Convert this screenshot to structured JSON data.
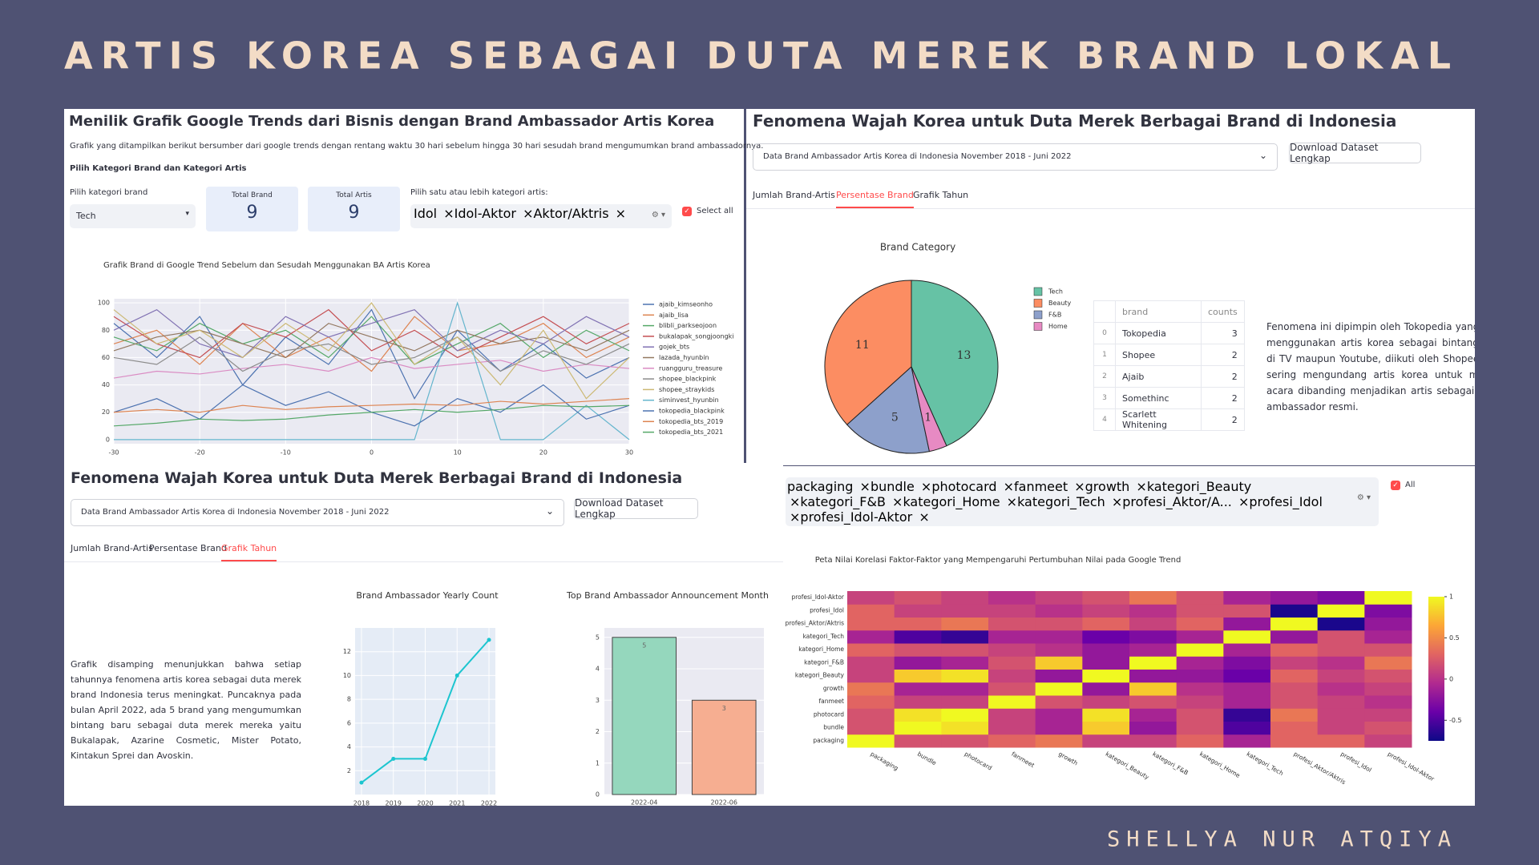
{
  "title": "ARTIS KOREA SEBAGAI DUTA MEREK BRAND LOKAL",
  "author": "SHELLYA NUR ATQIYA",
  "trends": {
    "heading": "Menilik Grafik Google Trends dari Bisnis dengan Brand Ambassador Artis Korea",
    "description": "Grafik yang ditampilkan berikut bersumber dari google trends dengan rentang waktu 30 hari sebelum hingga 30 hari sesudah brand mengumumkan brand ambassadornya.",
    "section_label": "Pilih Kategori Brand dan Kategori Artis",
    "brand_select_label": "Pilih kategori brand",
    "brand_select_value": "Tech",
    "metrics": [
      {
        "label": "Total Brand",
        "value": 9
      },
      {
        "label": "Total Artis",
        "value": 9
      }
    ],
    "artist_select_label": "Pilih satu atau lebih kategori artis:",
    "artist_tags": [
      "Idol",
      "Idol-Aktor",
      "Aktor/Aktris"
    ],
    "select_all": "Select all"
  },
  "categories_panel": {
    "heading": "Fenomena Wajah Korea untuk Duta Merek Berbagai Brand di Indonesia",
    "dataset": "Data Brand Ambassador Artis Korea di Indonesia November 2018 - Juni 2022",
    "download": "Download Dataset Lengkap",
    "tabs": [
      "Jumlah Brand-Artis",
      "Persentase Brand",
      "Grafik Tahun"
    ],
    "active_tab": 1,
    "table": {
      "columns": [
        "brand",
        "counts"
      ],
      "rows": [
        [
          0,
          "Tokopedia",
          3
        ],
        [
          1,
          "Shopee",
          2
        ],
        [
          2,
          "Ajaib",
          2
        ],
        [
          3,
          "Somethinc",
          2
        ],
        [
          4,
          "Scarlett Whitening",
          2
        ]
      ]
    },
    "text": "Fenomena ini dipimpin oleh Tokopedia yang telah menggunakan artis korea sebagai bintang iklan di TV maupun Youtube, diikuti oleh Shopee yang sering mengundang artis korea untuk mengisi acara dibanding menjadikan artis sebagai brand ambassador resmi."
  },
  "yearly_panel": {
    "heading": "Fenomena Wajah Korea untuk Duta Merek Berbagai Brand di Indonesia",
    "dataset": "Data Brand Ambassador Artis Korea di Indonesia November 2018 - Juni 2022",
    "download": "Download Dataset Lengkap",
    "tabs": [
      "Jumlah Brand-Artis",
      "Persentase Brand",
      "Grafik Tahun"
    ],
    "active_tab": 2,
    "text": "Grafik disamping menunjukkan bahwa setiap tahunnya fenomena artis korea sebagai duta merek brand Indonesia terus meningkat. Puncaknya pada bulan April 2022, ada 5 brand yang mengumumkan bintang baru sebagai duta merek mereka yaitu Bukalapak, Azarine Cosmetic, Mister Potato, Kintakun Sprei dan Avoskin."
  },
  "correlation_panel": {
    "tags": [
      "packaging",
      "bundle",
      "photocard",
      "fanmeet",
      "growth",
      "kategori_Beauty",
      "kategori_F&B",
      "kategori_Home",
      "kategori_Tech",
      "profesi_Aktor/A...",
      "profesi_Idol",
      "profesi_Idol-Aktor"
    ],
    "select_all": "All"
  },
  "chart_data": [
    {
      "type": "line",
      "title": "Grafik Brand di Google Trend Sebelum dan Sesudah Menggunakan BA Artis Korea",
      "x": [
        -30,
        -25,
        -20,
        -15,
        -10,
        -5,
        0,
        5,
        10,
        15,
        20,
        25,
        30
      ],
      "xlim": [
        -30,
        30
      ],
      "xticks": [
        -30,
        -20,
        -10,
        0,
        10,
        20,
        30
      ],
      "ylim": [
        -3,
        103
      ],
      "yticks": [
        0,
        20,
        40,
        60,
        80,
        100
      ],
      "grid": true,
      "series": [
        {
          "name": "ajaib_kimseonho",
          "color": "#4c72b0",
          "values": [
            85,
            60,
            90,
            40,
            75,
            55,
            95,
            30,
            80,
            50,
            70,
            45,
            60
          ]
        },
        {
          "name": "ajaib_lisa",
          "color": "#dd8452",
          "values": [
            70,
            80,
            55,
            85,
            60,
            75,
            50,
            90,
            65,
            70,
            85,
            60,
            75
          ]
        },
        {
          "name": "blibli_parkseojoon",
          "color": "#55a868",
          "values": [
            75,
            65,
            85,
            70,
            80,
            60,
            90,
            55,
            70,
            85,
            60,
            80,
            65
          ]
        },
        {
          "name": "bukalapak_songjoongki",
          "color": "#c44e52",
          "values": [
            90,
            70,
            60,
            85,
            75,
            95,
            65,
            80,
            60,
            75,
            90,
            70,
            85
          ]
        },
        {
          "name": "gojek_bts",
          "color": "#8172b3",
          "values": [
            80,
            95,
            70,
            60,
            90,
            75,
            85,
            95,
            65,
            80,
            70,
            90,
            75
          ]
        },
        {
          "name": "lazada_hyunbin",
          "color": "#937860",
          "values": [
            65,
            75,
            80,
            70,
            60,
            85,
            75,
            65,
            80,
            70,
            75,
            65,
            80
          ]
        },
        {
          "name": "ruangguru_treasure",
          "color": "#da8bc3",
          "values": [
            45,
            50,
            48,
            52,
            55,
            50,
            60,
            52,
            55,
            58,
            50,
            55,
            52
          ]
        },
        {
          "name": "shopee_blackpink",
          "color": "#8c8c8c",
          "values": [
            60,
            55,
            75,
            50,
            65,
            70,
            55,
            60,
            75,
            50,
            65,
            55,
            70
          ]
        },
        {
          "name": "shopee_straykids",
          "color": "#ccb974",
          "values": [
            95,
            70,
            80,
            60,
            85,
            65,
            100,
            55,
            75,
            40,
            80,
            30,
            60
          ]
        },
        {
          "name": "siminvest_hyunbin",
          "color": "#64b5cd",
          "values": [
            0,
            0,
            0,
            0,
            0,
            0,
            0,
            0,
            100,
            0,
            0,
            25,
            0
          ]
        },
        {
          "name": "tokopedia_blackpink",
          "color": "#4c72b0",
          "values": [
            20,
            30,
            15,
            40,
            25,
            35,
            20,
            10,
            30,
            20,
            40,
            15,
            25
          ]
        },
        {
          "name": "tokopedia_bts_2019",
          "color": "#dd8452",
          "values": [
            20,
            22,
            20,
            25,
            22,
            24,
            25,
            26,
            25,
            28,
            26,
            28,
            30
          ]
        },
        {
          "name": "tokopedia_bts_2021",
          "color": "#55a868",
          "values": [
            10,
            12,
            15,
            14,
            15,
            18,
            20,
            22,
            20,
            22,
            25,
            24,
            25
          ]
        }
      ]
    },
    {
      "type": "pie",
      "title": "Brand Category",
      "categories": [
        "Tech",
        "Beauty",
        "F&B",
        "Home"
      ],
      "values": [
        13,
        11,
        5,
        1
      ],
      "colors": [
        "#66c2a5",
        "#fc8d62",
        "#8da0cb",
        "#e78ac3"
      ],
      "startangle": -66
    },
    {
      "type": "line",
      "title": "Brand Ambassador Yearly Count",
      "x": [
        2018,
        2019,
        2020,
        2021,
        2022
      ],
      "values": [
        1,
        3,
        3,
        10,
        13
      ],
      "color": "#1cc5cf",
      "xlim": [
        2017.8,
        2022.2
      ],
      "xticks": [
        2018,
        2019,
        2020,
        2021,
        2022
      ],
      "ylim": [
        0,
        14
      ],
      "yticks": [
        2,
        4,
        6,
        8,
        10,
        12
      ],
      "grid": true,
      "markers": true
    },
    {
      "type": "bar",
      "title": "Top Brand Ambassador Announcement Month",
      "categories": [
        "2022-04",
        "2022-06"
      ],
      "values": [
        5,
        3
      ],
      "colors": [
        "#95d7bd",
        "#f6ae91"
      ],
      "ylim": [
        0,
        5.3
      ],
      "yticks": [
        0,
        1,
        2,
        3,
        4,
        5
      ],
      "grid": true
    },
    {
      "type": "heatmap",
      "title": "Peta Nilai Korelasi Faktor-Faktor yang Mempengaruhi Pertumbuhan Nilai pada Google Trend",
      "variables": [
        "packaging",
        "bundle",
        "photocard",
        "fanmeet",
        "growth",
        "kategori_Beauty",
        "kategori_F&B",
        "kategori_Home",
        "kategori_Tech",
        "profesi_Aktor/Aktris",
        "profesi_Idol",
        "profesi_Idol-Aktor"
      ],
      "matrix": [
        [
          1,
          0.2,
          0.2,
          0.3,
          0.4,
          0.1,
          0.1,
          0.3,
          -0.1,
          0.3,
          0.3,
          0.1
        ],
        [
          0.2,
          1,
          0.9,
          0.1,
          -0.1,
          0.8,
          -0.2,
          0.2,
          -0.5,
          0.3,
          0.1,
          0.2
        ],
        [
          0.2,
          0.9,
          1,
          0.1,
          -0.1,
          0.9,
          -0.1,
          0.2,
          -0.6,
          0.4,
          0.1,
          0.1
        ],
        [
          0.3,
          0.1,
          0.1,
          1,
          0.2,
          0.1,
          0.2,
          0.1,
          -0.1,
          0.2,
          0.1,
          0
        ],
        [
          0.4,
          -0.1,
          -0.1,
          0.2,
          1,
          -0.2,
          0.8,
          0,
          -0.1,
          0.2,
          0,
          0.1
        ],
        [
          0.1,
          0.8,
          0.9,
          0.1,
          -0.2,
          1,
          -0.2,
          -0.2,
          -0.4,
          0.3,
          0.1,
          0.2
        ],
        [
          0.1,
          -0.2,
          -0.1,
          0.2,
          0.8,
          -0.2,
          1,
          -0.1,
          -0.3,
          0.1,
          0,
          0.4
        ],
        [
          0.3,
          0.2,
          0.2,
          0.1,
          0,
          -0.2,
          -0.1,
          1,
          -0.1,
          0.3,
          0.2,
          0.2
        ],
        [
          -0.1,
          -0.5,
          -0.6,
          -0.1,
          -0.1,
          -0.4,
          -0.3,
          -0.1,
          1,
          -0.2,
          0.2,
          -0.1
        ],
        [
          0.3,
          0.3,
          0.4,
          0.2,
          0.2,
          0.3,
          0.1,
          0.3,
          -0.2,
          1,
          -0.7,
          -0.2
        ],
        [
          0.3,
          0.1,
          0.1,
          0.1,
          0,
          0.1,
          0,
          0.2,
          0.2,
          -0.7,
          1,
          -0.3
        ],
        [
          0.1,
          0.2,
          0.1,
          0,
          0.1,
          0.2,
          0.4,
          0.2,
          -0.1,
          -0.2,
          -0.3,
          1
        ]
      ],
      "zlim": [
        -0.75,
        1
      ],
      "colorbar_ticks": [
        -0.5,
        0,
        0.5,
        1
      ],
      "colorscale": [
        "#0d0887",
        "#6a00a8",
        "#b12a90",
        "#e16462",
        "#fca636",
        "#f0f921"
      ]
    }
  ]
}
